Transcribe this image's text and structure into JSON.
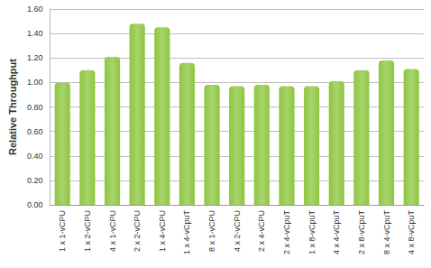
{
  "chart_data": {
    "type": "bar",
    "y_label": "Relative Throughput",
    "categories": [
      "1 x 1-vCPU",
      "1 x 2-vCPU",
      "4 x 1-vCPU",
      "2 x 2-vCPU",
      "1 x 4-vCPU",
      "1 x 4-vCpuT",
      "8 x 1-vCPU",
      "4 x 2-vCPU",
      "2 x 4-vCPU",
      "2 x 4-vCpuT",
      "1 x 8-vCpuT",
      "4 x 4-vCpuT",
      "2 x 8-vCpuT",
      "8 x 4-vCpuT",
      "4 x 8-vCpuT"
    ],
    "values": [
      1.0,
      1.1,
      1.21,
      1.48,
      1.45,
      1.16,
      0.98,
      0.97,
      0.98,
      0.97,
      0.97,
      1.01,
      1.1,
      1.18,
      1.11
    ],
    "color": "#8cc63e",
    "ylim": [
      0,
      1.6
    ],
    "yticks": [
      {
        "value": 0,
        "label": "0.00"
      },
      {
        "value": 0.2,
        "label": "0.20"
      },
      {
        "value": 0.4,
        "label": "0.40"
      },
      {
        "value": 0.6,
        "label": "0.60"
      },
      {
        "value": 0.8,
        "label": "0.80"
      },
      {
        "value": 1.0,
        "label": "1.00"
      },
      {
        "value": 1.2,
        "label": "1.20"
      },
      {
        "value": 1.4,
        "label": "1.40"
      },
      {
        "value": 1.6,
        "label": "1.60"
      }
    ],
    "grid": true
  }
}
